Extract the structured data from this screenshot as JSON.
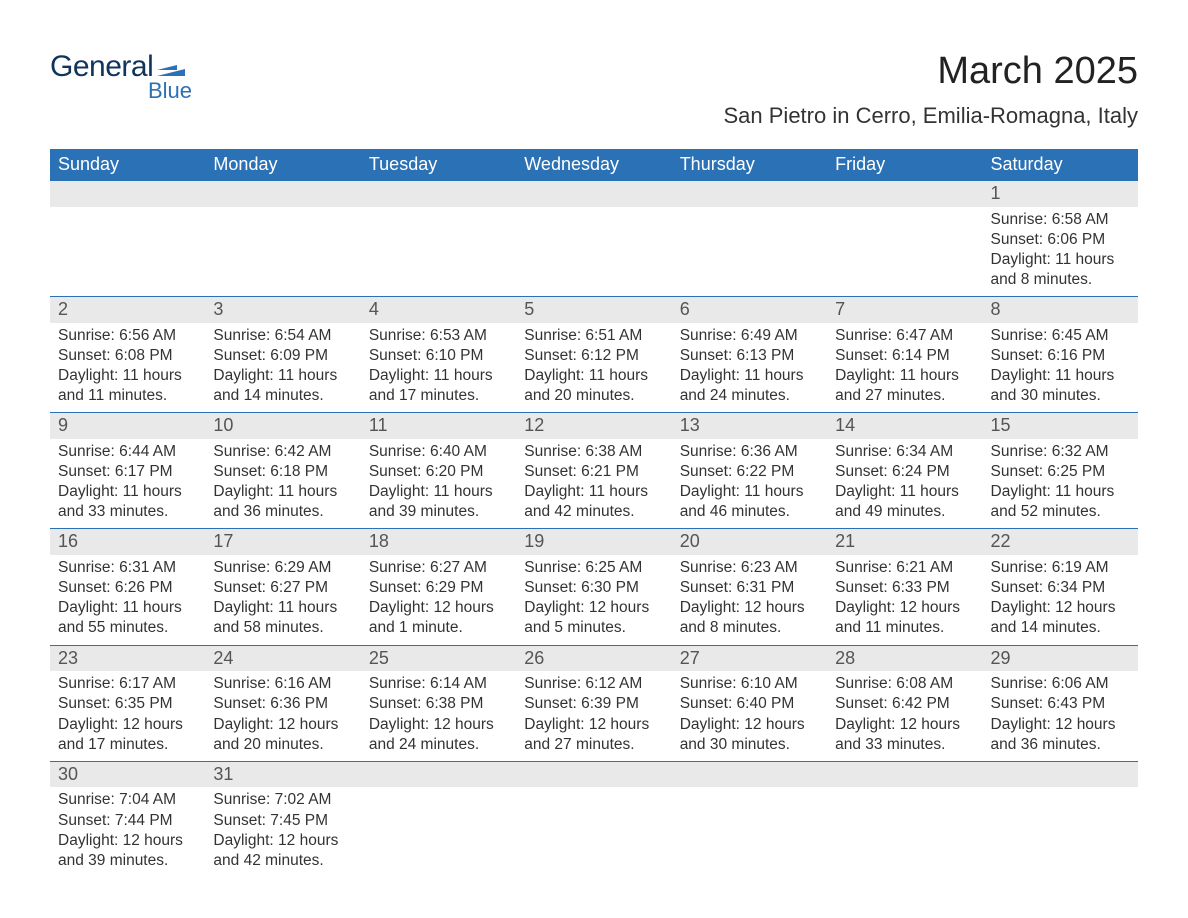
{
  "logo": {
    "text_general": "General",
    "text_blue": "Blue",
    "color_general": "#10345c",
    "color_blue": "#2b71b6",
    "flag_color": "#2b71b6"
  },
  "title": "March 2025",
  "location": "San Pietro in Cerro, Emilia-Romagna, Italy",
  "colors": {
    "header_bg": "#2b71b6",
    "header_text": "#ffffff",
    "daynum_bg": "#e9e9e9",
    "border": "#2b71b6",
    "text": "#333333",
    "daynum_text": "#555555",
    "page_bg": "#ffffff"
  },
  "fonts": {
    "title_size_pt": 29,
    "location_size_pt": 17,
    "header_size_pt": 14,
    "daynum_size_pt": 14,
    "body_size_pt": 12
  },
  "layout": {
    "cols": 7,
    "rows": 6,
    "first_day_col": 6
  },
  "weekdays": [
    "Sunday",
    "Monday",
    "Tuesday",
    "Wednesday",
    "Thursday",
    "Friday",
    "Saturday"
  ],
  "days": [
    {
      "n": 1,
      "sunrise": "Sunrise: 6:58 AM",
      "sunset": "Sunset: 6:06 PM",
      "daylight": "Daylight: 11 hours and 8 minutes."
    },
    {
      "n": 2,
      "sunrise": "Sunrise: 6:56 AM",
      "sunset": "Sunset: 6:08 PM",
      "daylight": "Daylight: 11 hours and 11 minutes."
    },
    {
      "n": 3,
      "sunrise": "Sunrise: 6:54 AM",
      "sunset": "Sunset: 6:09 PM",
      "daylight": "Daylight: 11 hours and 14 minutes."
    },
    {
      "n": 4,
      "sunrise": "Sunrise: 6:53 AM",
      "sunset": "Sunset: 6:10 PM",
      "daylight": "Daylight: 11 hours and 17 minutes."
    },
    {
      "n": 5,
      "sunrise": "Sunrise: 6:51 AM",
      "sunset": "Sunset: 6:12 PM",
      "daylight": "Daylight: 11 hours and 20 minutes."
    },
    {
      "n": 6,
      "sunrise": "Sunrise: 6:49 AM",
      "sunset": "Sunset: 6:13 PM",
      "daylight": "Daylight: 11 hours and 24 minutes."
    },
    {
      "n": 7,
      "sunrise": "Sunrise: 6:47 AM",
      "sunset": "Sunset: 6:14 PM",
      "daylight": "Daylight: 11 hours and 27 minutes."
    },
    {
      "n": 8,
      "sunrise": "Sunrise: 6:45 AM",
      "sunset": "Sunset: 6:16 PM",
      "daylight": "Daylight: 11 hours and 30 minutes."
    },
    {
      "n": 9,
      "sunrise": "Sunrise: 6:44 AM",
      "sunset": "Sunset: 6:17 PM",
      "daylight": "Daylight: 11 hours and 33 minutes."
    },
    {
      "n": 10,
      "sunrise": "Sunrise: 6:42 AM",
      "sunset": "Sunset: 6:18 PM",
      "daylight": "Daylight: 11 hours and 36 minutes."
    },
    {
      "n": 11,
      "sunrise": "Sunrise: 6:40 AM",
      "sunset": "Sunset: 6:20 PM",
      "daylight": "Daylight: 11 hours and 39 minutes."
    },
    {
      "n": 12,
      "sunrise": "Sunrise: 6:38 AM",
      "sunset": "Sunset: 6:21 PM",
      "daylight": "Daylight: 11 hours and 42 minutes."
    },
    {
      "n": 13,
      "sunrise": "Sunrise: 6:36 AM",
      "sunset": "Sunset: 6:22 PM",
      "daylight": "Daylight: 11 hours and 46 minutes."
    },
    {
      "n": 14,
      "sunrise": "Sunrise: 6:34 AM",
      "sunset": "Sunset: 6:24 PM",
      "daylight": "Daylight: 11 hours and 49 minutes."
    },
    {
      "n": 15,
      "sunrise": "Sunrise: 6:32 AM",
      "sunset": "Sunset: 6:25 PM",
      "daylight": "Daylight: 11 hours and 52 minutes."
    },
    {
      "n": 16,
      "sunrise": "Sunrise: 6:31 AM",
      "sunset": "Sunset: 6:26 PM",
      "daylight": "Daylight: 11 hours and 55 minutes."
    },
    {
      "n": 17,
      "sunrise": "Sunrise: 6:29 AM",
      "sunset": "Sunset: 6:27 PM",
      "daylight": "Daylight: 11 hours and 58 minutes."
    },
    {
      "n": 18,
      "sunrise": "Sunrise: 6:27 AM",
      "sunset": "Sunset: 6:29 PM",
      "daylight": "Daylight: 12 hours and 1 minute."
    },
    {
      "n": 19,
      "sunrise": "Sunrise: 6:25 AM",
      "sunset": "Sunset: 6:30 PM",
      "daylight": "Daylight: 12 hours and 5 minutes."
    },
    {
      "n": 20,
      "sunrise": "Sunrise: 6:23 AM",
      "sunset": "Sunset: 6:31 PM",
      "daylight": "Daylight: 12 hours and 8 minutes."
    },
    {
      "n": 21,
      "sunrise": "Sunrise: 6:21 AM",
      "sunset": "Sunset: 6:33 PM",
      "daylight": "Daylight: 12 hours and 11 minutes."
    },
    {
      "n": 22,
      "sunrise": "Sunrise: 6:19 AM",
      "sunset": "Sunset: 6:34 PM",
      "daylight": "Daylight: 12 hours and 14 minutes."
    },
    {
      "n": 23,
      "sunrise": "Sunrise: 6:17 AM",
      "sunset": "Sunset: 6:35 PM",
      "daylight": "Daylight: 12 hours and 17 minutes."
    },
    {
      "n": 24,
      "sunrise": "Sunrise: 6:16 AM",
      "sunset": "Sunset: 6:36 PM",
      "daylight": "Daylight: 12 hours and 20 minutes."
    },
    {
      "n": 25,
      "sunrise": "Sunrise: 6:14 AM",
      "sunset": "Sunset: 6:38 PM",
      "daylight": "Daylight: 12 hours and 24 minutes."
    },
    {
      "n": 26,
      "sunrise": "Sunrise: 6:12 AM",
      "sunset": "Sunset: 6:39 PM",
      "daylight": "Daylight: 12 hours and 27 minutes."
    },
    {
      "n": 27,
      "sunrise": "Sunrise: 6:10 AM",
      "sunset": "Sunset: 6:40 PM",
      "daylight": "Daylight: 12 hours and 30 minutes."
    },
    {
      "n": 28,
      "sunrise": "Sunrise: 6:08 AM",
      "sunset": "Sunset: 6:42 PM",
      "daylight": "Daylight: 12 hours and 33 minutes."
    },
    {
      "n": 29,
      "sunrise": "Sunrise: 6:06 AM",
      "sunset": "Sunset: 6:43 PM",
      "daylight": "Daylight: 12 hours and 36 minutes."
    },
    {
      "n": 30,
      "sunrise": "Sunrise: 7:04 AM",
      "sunset": "Sunset: 7:44 PM",
      "daylight": "Daylight: 12 hours and 39 minutes."
    },
    {
      "n": 31,
      "sunrise": "Sunrise: 7:02 AM",
      "sunset": "Sunset: 7:45 PM",
      "daylight": "Daylight: 12 hours and 42 minutes."
    }
  ]
}
